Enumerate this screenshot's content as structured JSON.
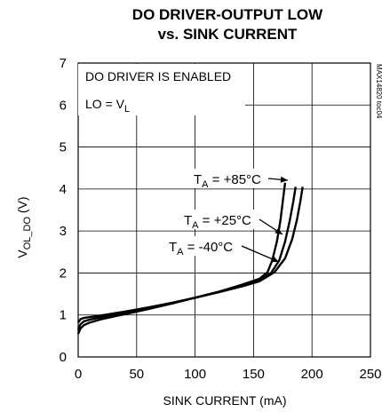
{
  "chart_data": {
    "type": "line",
    "title": "DO DRIVER-OUTPUT LOW",
    "subtitle": "vs. SINK CURRENT",
    "xlabel": "SINK CURRENT (mA)",
    "ylabel_main": "V",
    "ylabel_sub": "OL_DO",
    "ylabel_unit": " (V)",
    "xlim": [
      0,
      250
    ],
    "ylim": [
      0,
      7
    ],
    "xticks": [
      "0",
      "50",
      "100",
      "150",
      "200",
      "250"
    ],
    "yticks": [
      "0",
      "1",
      "2",
      "3",
      "4",
      "5",
      "6",
      "7"
    ],
    "grid": true,
    "annotation_line1": "DO DRIVER IS ENABLED",
    "annotation_line2_main": "LO = V",
    "annotation_line2_sub": "L",
    "watermark": "MAX14820 toc04",
    "series": [
      {
        "label_main": "T",
        "label_sub": "A",
        "label_rest": " = +85°C",
        "x": [
          0,
          2,
          5,
          10,
          20,
          40,
          60,
          80,
          100,
          120,
          140,
          155,
          162,
          166,
          170,
          173,
          175,
          177
        ],
        "y": [
          0.55,
          0.68,
          0.76,
          0.82,
          0.9,
          1.02,
          1.14,
          1.27,
          1.41,
          1.55,
          1.72,
          1.86,
          2.02,
          2.3,
          2.75,
          3.25,
          3.7,
          4.15
        ]
      },
      {
        "label_main": "T",
        "label_sub": "A",
        "label_rest": " = +25°C",
        "x": [
          0,
          2,
          5,
          10,
          20,
          40,
          60,
          80,
          100,
          120,
          140,
          155,
          165,
          172,
          177,
          181,
          184,
          186
        ],
        "y": [
          0.65,
          0.78,
          0.85,
          0.89,
          0.95,
          1.05,
          1.16,
          1.28,
          1.41,
          1.55,
          1.7,
          1.84,
          2.0,
          2.3,
          2.75,
          3.25,
          3.7,
          4.05
        ]
      },
      {
        "label_main": "T",
        "label_sub": "A",
        "label_rest": " = -40°C",
        "x": [
          0,
          2,
          5,
          10,
          20,
          40,
          60,
          80,
          100,
          120,
          140,
          155,
          168,
          177,
          183,
          187,
          190,
          192
        ],
        "y": [
          0.82,
          0.9,
          0.93,
          0.95,
          0.99,
          1.08,
          1.18,
          1.29,
          1.41,
          1.54,
          1.68,
          1.8,
          2.02,
          2.35,
          2.8,
          3.25,
          3.7,
          4.05
        ]
      }
    ]
  }
}
